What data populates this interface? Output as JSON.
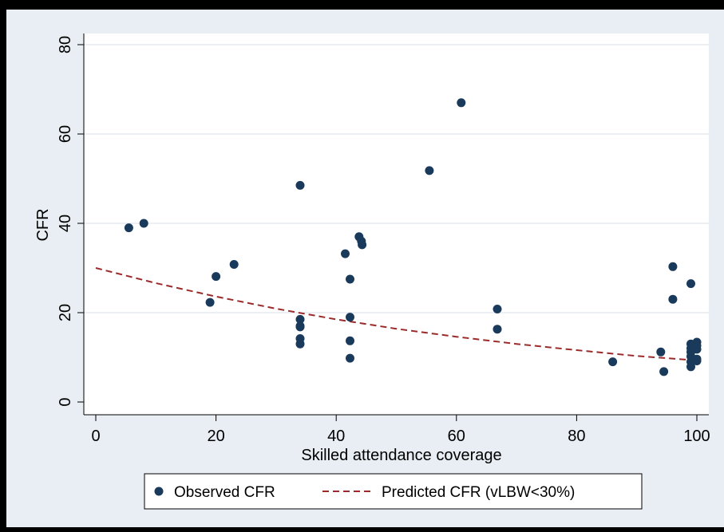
{
  "chart_data": {
    "type": "scatter",
    "xlabel": "Skilled attendance coverage",
    "ylabel": "CFR",
    "xlim": [
      0,
      100
    ],
    "ylim": [
      0,
      80
    ],
    "x_ticks": [
      0,
      20,
      40,
      60,
      80,
      100
    ],
    "y_ticks": [
      0,
      20,
      40,
      60,
      80
    ],
    "grid": "horizontal",
    "legend_position": "bottom",
    "series": [
      {
        "name": "Observed CFR",
        "type": "scatter",
        "color": "#1a3a5c",
        "points": [
          [
            5.5,
            39.0
          ],
          [
            8,
            40.0
          ],
          [
            19,
            22.3
          ],
          [
            20,
            28.1
          ],
          [
            23,
            30.8
          ],
          [
            34,
            48.5
          ],
          [
            34,
            18.5
          ],
          [
            34,
            17.0
          ],
          [
            34,
            16.8
          ],
          [
            34,
            14.2
          ],
          [
            34,
            13.0
          ],
          [
            41.5,
            33.2
          ],
          [
            42.3,
            27.5
          ],
          [
            42.3,
            19.0
          ],
          [
            42.3,
            13.7
          ],
          [
            42.3,
            9.8
          ],
          [
            43.8,
            37.0
          ],
          [
            44.2,
            36.0
          ],
          [
            44.3,
            35.2
          ],
          [
            55.5,
            51.8
          ],
          [
            60.8,
            67.0
          ],
          [
            66.8,
            20.8
          ],
          [
            66.8,
            16.3
          ],
          [
            86,
            9.0
          ],
          [
            94,
            11.2
          ],
          [
            94.5,
            6.8
          ],
          [
            96,
            30.3
          ],
          [
            96,
            23.0
          ],
          [
            99,
            26.5
          ],
          [
            99,
            13.0
          ],
          [
            99,
            12.0
          ],
          [
            99,
            11.2
          ],
          [
            99,
            10.2
          ],
          [
            99,
            9.0
          ],
          [
            99,
            7.9
          ],
          [
            100,
            13.4
          ],
          [
            100,
            12.6
          ],
          [
            100,
            11.8
          ],
          [
            100,
            9.6
          ],
          [
            100,
            9.2
          ]
        ]
      },
      {
        "name": "Predicted CFR (vLBW<30%)",
        "type": "line",
        "style": "dashed",
        "color": "#9b2b2b",
        "points": [
          [
            0,
            30.0
          ],
          [
            10,
            26.6
          ],
          [
            20,
            23.6
          ],
          [
            30,
            20.9
          ],
          [
            40,
            18.5
          ],
          [
            50,
            16.4
          ],
          [
            60,
            14.6
          ],
          [
            70,
            13.0
          ],
          [
            80,
            11.6
          ],
          [
            90,
            10.3
          ],
          [
            100,
            9.3
          ]
        ]
      }
    ]
  }
}
